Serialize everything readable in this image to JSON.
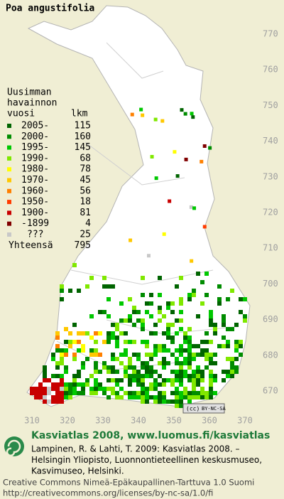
{
  "title": "Poa angustifolia",
  "legend": {
    "heading": [
      "Uusimman",
      "havainnon",
      "vuosi"
    ],
    "count_heading": "lkm",
    "entries": [
      {
        "label": "2005-",
        "count": 115,
        "color": "#006400"
      },
      {
        "label": "2000-",
        "count": 160,
        "color": "#008c00"
      },
      {
        "label": "1995-",
        "count": 145,
        "color": "#00c800"
      },
      {
        "label": "1990-",
        "count": 68,
        "color": "#80e800"
      },
      {
        "label": "1980-",
        "count": 78,
        "color": "#ffff00"
      },
      {
        "label": "1970-",
        "count": 45,
        "color": "#ffc800"
      },
      {
        "label": "1960-",
        "count": 56,
        "color": "#ff8000"
      },
      {
        "label": "1950-",
        "count": 18,
        "color": "#ff3c00"
      },
      {
        "label": "1900-",
        "count": 81,
        "color": "#c80000"
      },
      {
        "label": "-1899",
        "count": 4,
        "color": "#800000"
      },
      {
        "label": "???",
        "count": 25,
        "color": "#c8c8c8"
      }
    ],
    "total_label": "Yhteensä",
    "total": 795
  },
  "grid": {
    "y_labels": [
      770,
      760,
      750,
      740,
      730,
      720,
      710,
      700,
      690,
      680,
      670
    ],
    "x_labels": [
      310,
      320,
      330,
      340,
      350,
      360,
      370
    ]
  },
  "badge": "BY-NC-SA",
  "footer": {
    "brand": "Kasviatlas 2008, www.luomus.fi/kasviatlas",
    "citation": [
      "Lampinen, R. & Lahti, T. 2009: Kasviatlas 2008. –",
      "Helsingin Yliopisto, Luonnontieteellinen keskusmuseo,",
      "Kasvimuseo, Helsinki."
    ],
    "license": [
      "Creative Commons Nimeä-Epäkaupallinen-Tarttuva 1.0 Suomi",
      "http://creativecommons.org/licenses/by-nc-sa/1.0/fi"
    ]
  }
}
